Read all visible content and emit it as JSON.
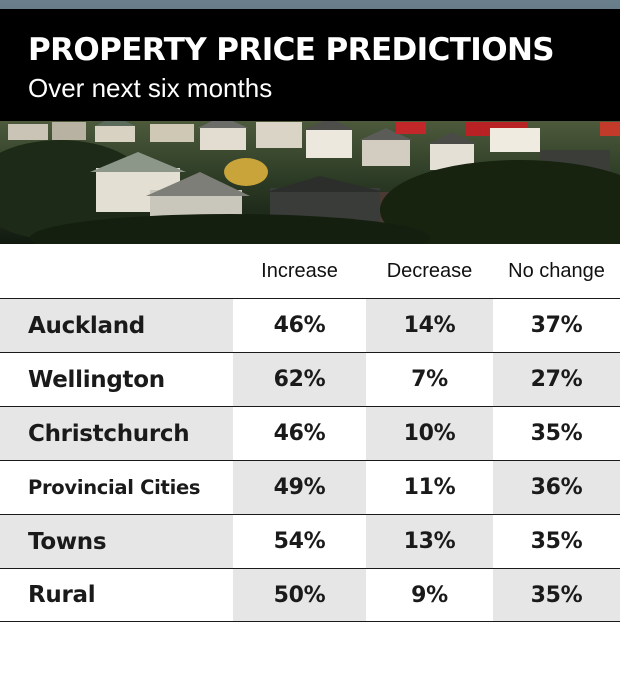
{
  "header": {
    "title": "PROPERTY PRICE PREDICTIONS",
    "subtitle": "Over next six months"
  },
  "table": {
    "columns": [
      "Increase",
      "Decrease",
      "No change"
    ],
    "rows": [
      {
        "region": "Auckland",
        "values": [
          "46%",
          "14%",
          "37%"
        ]
      },
      {
        "region": "Wellington",
        "values": [
          "62%",
          "7%",
          "27%"
        ]
      },
      {
        "region": "Christchurch",
        "values": [
          "46%",
          "10%",
          "35%"
        ]
      },
      {
        "region": "Provincial Cities",
        "values": [
          "49%",
          "11%",
          "36%"
        ]
      },
      {
        "region": "Towns",
        "values": [
          "54%",
          "13%",
          "35%"
        ]
      },
      {
        "region": "Rural",
        "values": [
          "50%",
          "9%",
          "35%"
        ]
      }
    ]
  },
  "chart_data": {
    "type": "table",
    "title": "PROPERTY PRICE PREDICTIONS",
    "subtitle": "Over next six months",
    "categories": [
      "Auckland",
      "Wellington",
      "Christchurch",
      "Provincial Cities",
      "Towns",
      "Rural"
    ],
    "series": [
      {
        "name": "Increase",
        "values": [
          46,
          62,
          46,
          49,
          54,
          50
        ]
      },
      {
        "name": "Decrease",
        "values": [
          14,
          7,
          10,
          11,
          13,
          9
        ]
      },
      {
        "name": "No change",
        "values": [
          37,
          27,
          35,
          36,
          35,
          35
        ]
      }
    ],
    "unit": "%"
  },
  "colors": {
    "title_band": "#000000",
    "shade": "#e6e6e6",
    "text": "#1a1a1a"
  }
}
